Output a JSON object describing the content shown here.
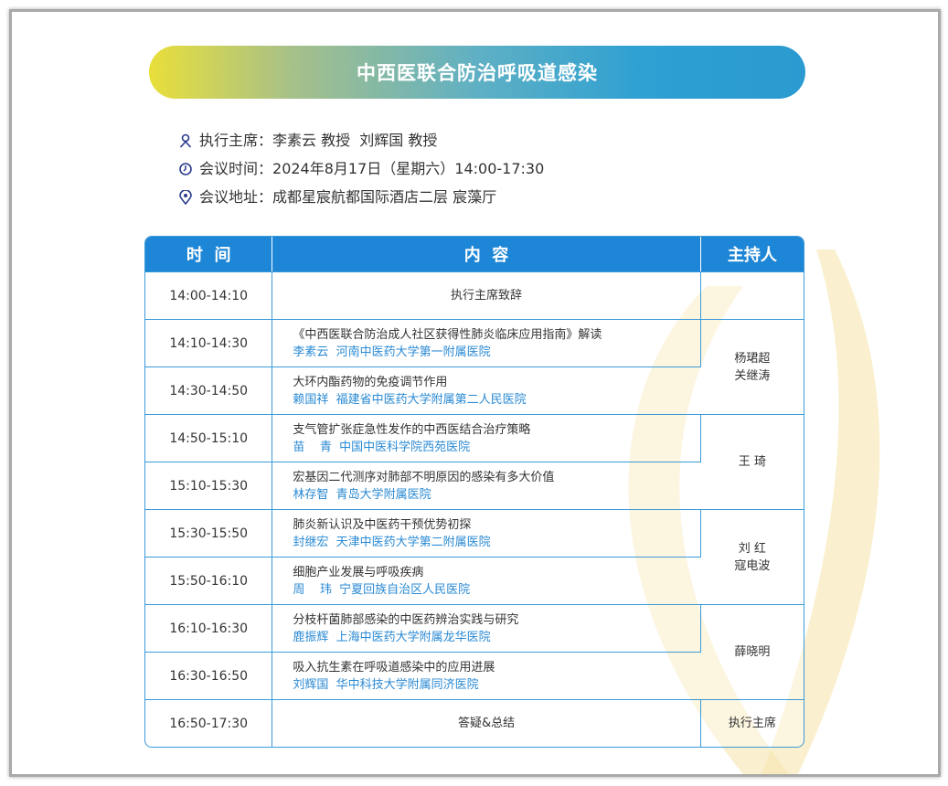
{
  "title": "中西医联合防治呼吸道感染",
  "info": [
    {
      "icon": "person-icon",
      "label": "执行主席：",
      "value": "李素云 教授  刘辉国 教授"
    },
    {
      "icon": "clock-icon",
      "label": "会议时间：",
      "value": "2024年8月17日（星期六）14:00-17:30"
    },
    {
      "icon": "location-pin-icon",
      "label": "会议地址：",
      "value": "成都星宸航都国际酒店二层 宸藻厅"
    }
  ],
  "table": {
    "headers": [
      "时  间",
      "内  容",
      "主持人"
    ],
    "rows": [
      {
        "time": "14:00-14:10",
        "topic": "执行主席致辞",
        "speaker": "",
        "host": "",
        "host_rowspan": 1,
        "centered": true
      },
      {
        "time": "14:10-14:30",
        "topic": "《中西医联合防治成人社区获得性肺炎临床应用指南》解读",
        "speaker": "李素云  河南中医药大学第一附属医院",
        "host": "杨珺超\n关继涛",
        "host_rowspan": 2
      },
      {
        "time": "14:30-14:50",
        "topic": "大环内酯药物的免疫调节作用",
        "speaker": "赖国祥  福建省中医药大学附属第二人民医院"
      },
      {
        "time": "14:50-15:10",
        "topic": "支气管扩张症急性发作的中西医结合治疗策略",
        "speaker": "苗    青  中国中医科学院西苑医院",
        "host": "王    琦",
        "host_rowspan": 2
      },
      {
        "time": "15:10-15:30",
        "topic": "宏基因二代测序对肺部不明原因的感染有多大价值",
        "speaker": "林存智  青岛大学附属医院"
      },
      {
        "time": "15:30-15:50",
        "topic": "肺炎新认识及中医药干预优势初探",
        "speaker": "封继宏  天津中医药大学第二附属医院",
        "host": "刘    红\n寇电波",
        "host_rowspan": 2
      },
      {
        "time": "15:50-16:10",
        "topic": "细胞产业发展与呼吸疾病",
        "speaker": "周    玮  宁夏回族自治区人民医院"
      },
      {
        "time": "16:10-16:30",
        "topic": "分枝杆菌肺部感染的中医药辨治实践与研究",
        "speaker": "鹿振辉  上海中医药大学附属龙华医院",
        "host": "薛晓明",
        "host_rowspan": 2
      },
      {
        "time": "16:30-16:50",
        "topic": "吸入抗生素在呼吸道感染中的应用进展",
        "speaker": "刘辉国  华中科技大学附属同济医院"
      },
      {
        "time": "16:50-17:30",
        "topic": "答疑&总结",
        "speaker": "",
        "host": "执行主席",
        "host_rowspan": 1,
        "centered": true
      }
    ]
  },
  "colors": {
    "accent": "#1e86d6",
    "speaker": "#2a8ad4",
    "gradient_start": "#e9df3a",
    "gradient_end": "#2b9ad0"
  }
}
